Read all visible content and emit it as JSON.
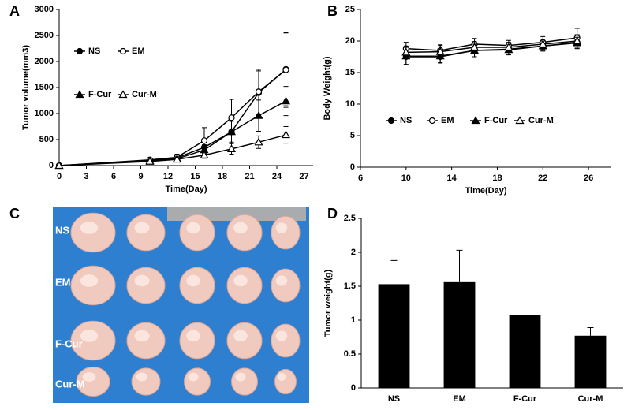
{
  "chart_data": [
    {
      "panel": "A",
      "type": "line",
      "x_label": "Time(Day)",
      "y_label": "Tumor volume(mm3)",
      "x": [
        0,
        10,
        13,
        16,
        19,
        22,
        25
      ],
      "series": [
        {
          "name": "NS",
          "color": "#000000",
          "marker": "circle",
          "values": [
            0,
            100,
            150,
            350,
            650,
            1400,
            1850
          ],
          "errors": [
            0,
            20,
            40,
            120,
            300,
            420,
            700
          ]
        },
        {
          "name": "EM",
          "color": "#000000",
          "marker": "circle-open",
          "values": [
            0,
            110,
            160,
            480,
            920,
            1420,
            1840
          ],
          "errors": [
            0,
            30,
            60,
            250,
            350,
            430,
            720
          ]
        },
        {
          "name": "F-Cur",
          "color": "#000000",
          "marker": "triangle",
          "values": [
            0,
            90,
            130,
            300,
            650,
            960,
            1240
          ],
          "errors": [
            0,
            20,
            40,
            100,
            200,
            300,
            280
          ]
        },
        {
          "name": "Cur-M",
          "color": "#000000",
          "marker": "triangle-open",
          "values": [
            0,
            80,
            120,
            200,
            320,
            450,
            590
          ],
          "errors": [
            0,
            15,
            30,
            60,
            100,
            120,
            160
          ]
        }
      ],
      "xlim": [
        0,
        28
      ],
      "xticks": [
        0,
        3,
        6,
        9,
        12,
        15,
        18,
        21,
        24,
        27
      ],
      "ylim": [
        0,
        3000
      ],
      "yticks": [
        0,
        500,
        1000,
        1500,
        2000,
        2500,
        3000
      ],
      "grid": false
    },
    {
      "panel": "B",
      "type": "line",
      "x_label": "Time(Day)",
      "y_label": "Body Weight(g)",
      "x": [
        10,
        13,
        16,
        19,
        22,
        25
      ],
      "series": [
        {
          "name": "NS",
          "color": "#000000",
          "marker": "circle",
          "values": [
            17.5,
            17.5,
            18.5,
            18.7,
            19.2,
            19.8
          ],
          "errors": [
            1.2,
            1.0,
            1.0,
            0.8,
            0.8,
            1.0
          ]
        },
        {
          "name": "EM",
          "color": "#000000",
          "marker": "circle-open",
          "values": [
            18.8,
            18.5,
            19.5,
            19.3,
            19.8,
            20.5
          ],
          "errors": [
            1.0,
            0.9,
            0.9,
            0.8,
            0.9,
            1.5
          ]
        },
        {
          "name": "F-Cur",
          "color": "#000000",
          "marker": "triangle",
          "values": [
            17.6,
            17.6,
            18.5,
            18.6,
            19.2,
            19.7
          ],
          "errors": [
            1.4,
            1.0,
            1.0,
            0.8,
            0.8,
            0.9
          ]
        },
        {
          "name": "Cur-M",
          "color": "#000000",
          "marker": "triangle-open",
          "values": [
            18.2,
            18.3,
            19.0,
            19.0,
            19.5,
            20.0
          ],
          "errors": [
            1.0,
            1.0,
            0.9,
            0.8,
            0.8,
            1.0
          ]
        }
      ],
      "xlim": [
        6,
        28
      ],
      "xticks": [
        6,
        10,
        14,
        18,
        22,
        26
      ],
      "ylim": [
        0,
        25
      ],
      "yticks": [
        0,
        5,
        10,
        15,
        20,
        25
      ],
      "grid": false
    },
    {
      "panel": "D",
      "type": "bar",
      "y_label": "Tumor weight(g)",
      "categories": [
        "NS",
        "EM",
        "F-Cur",
        "Cur-M"
      ],
      "values": [
        1.53,
        1.56,
        1.07,
        0.77
      ],
      "errors": [
        0.35,
        0.47,
        0.11,
        0.12
      ],
      "color": "#000000",
      "ylim": [
        0,
        2.5
      ],
      "yticks": [
        0,
        0.5,
        1,
        1.5,
        2,
        2.5
      ],
      "grid": false
    }
  ],
  "photo": {
    "panel": "C",
    "rows": [
      "NS",
      "EM",
      "F-Cur",
      "Cur-M"
    ]
  }
}
